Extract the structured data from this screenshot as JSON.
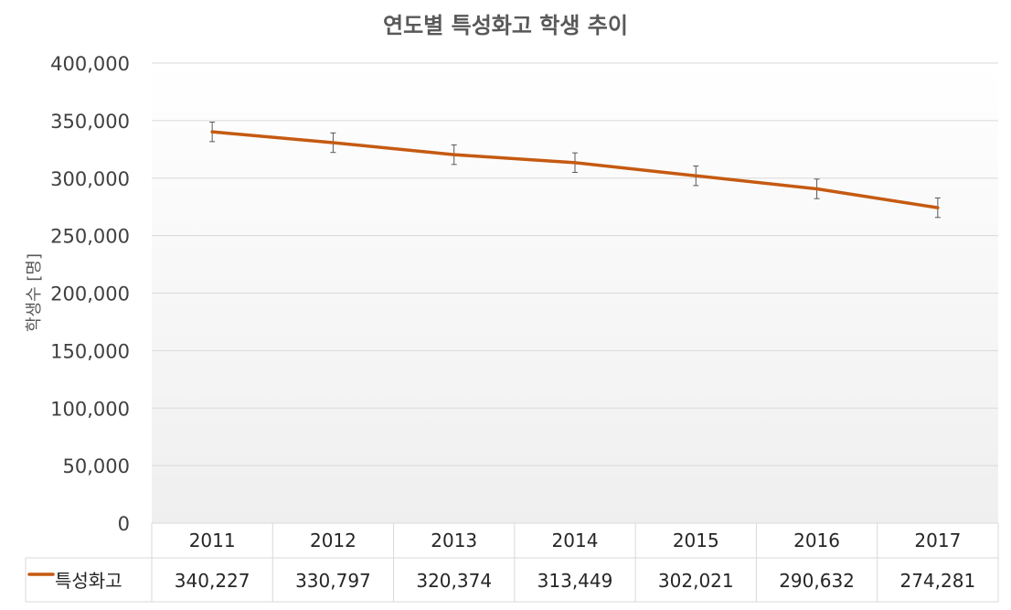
{
  "chart_data": {
    "type": "line",
    "title": "연도별 특성화고 학생 추이",
    "xlabel": "",
    "ylabel": "학생수 [명]",
    "categories": [
      "2011",
      "2012",
      "2013",
      "2014",
      "2015",
      "2016",
      "2017"
    ],
    "series": [
      {
        "name": "특성화고",
        "color": "#C55A11",
        "values": [
          340227,
          330797,
          320374,
          313449,
          302021,
          290632,
          274281
        ],
        "value_labels": [
          "340,227",
          "330,797",
          "320,374",
          "313,449",
          "302,021",
          "290,632",
          "274,281"
        ],
        "error": 8500
      }
    ],
    "ylim": [
      0,
      400000
    ],
    "yticks": [
      0,
      50000,
      100000,
      150000,
      200000,
      250000,
      300000,
      350000,
      400000
    ],
    "ytick_labels": [
      "0",
      "50,000",
      "100,000",
      "150,000",
      "200,000",
      "250,000",
      "300,000",
      "350,000",
      "400,000"
    ],
    "grid": true,
    "legend": "data-table",
    "data_table": true
  }
}
